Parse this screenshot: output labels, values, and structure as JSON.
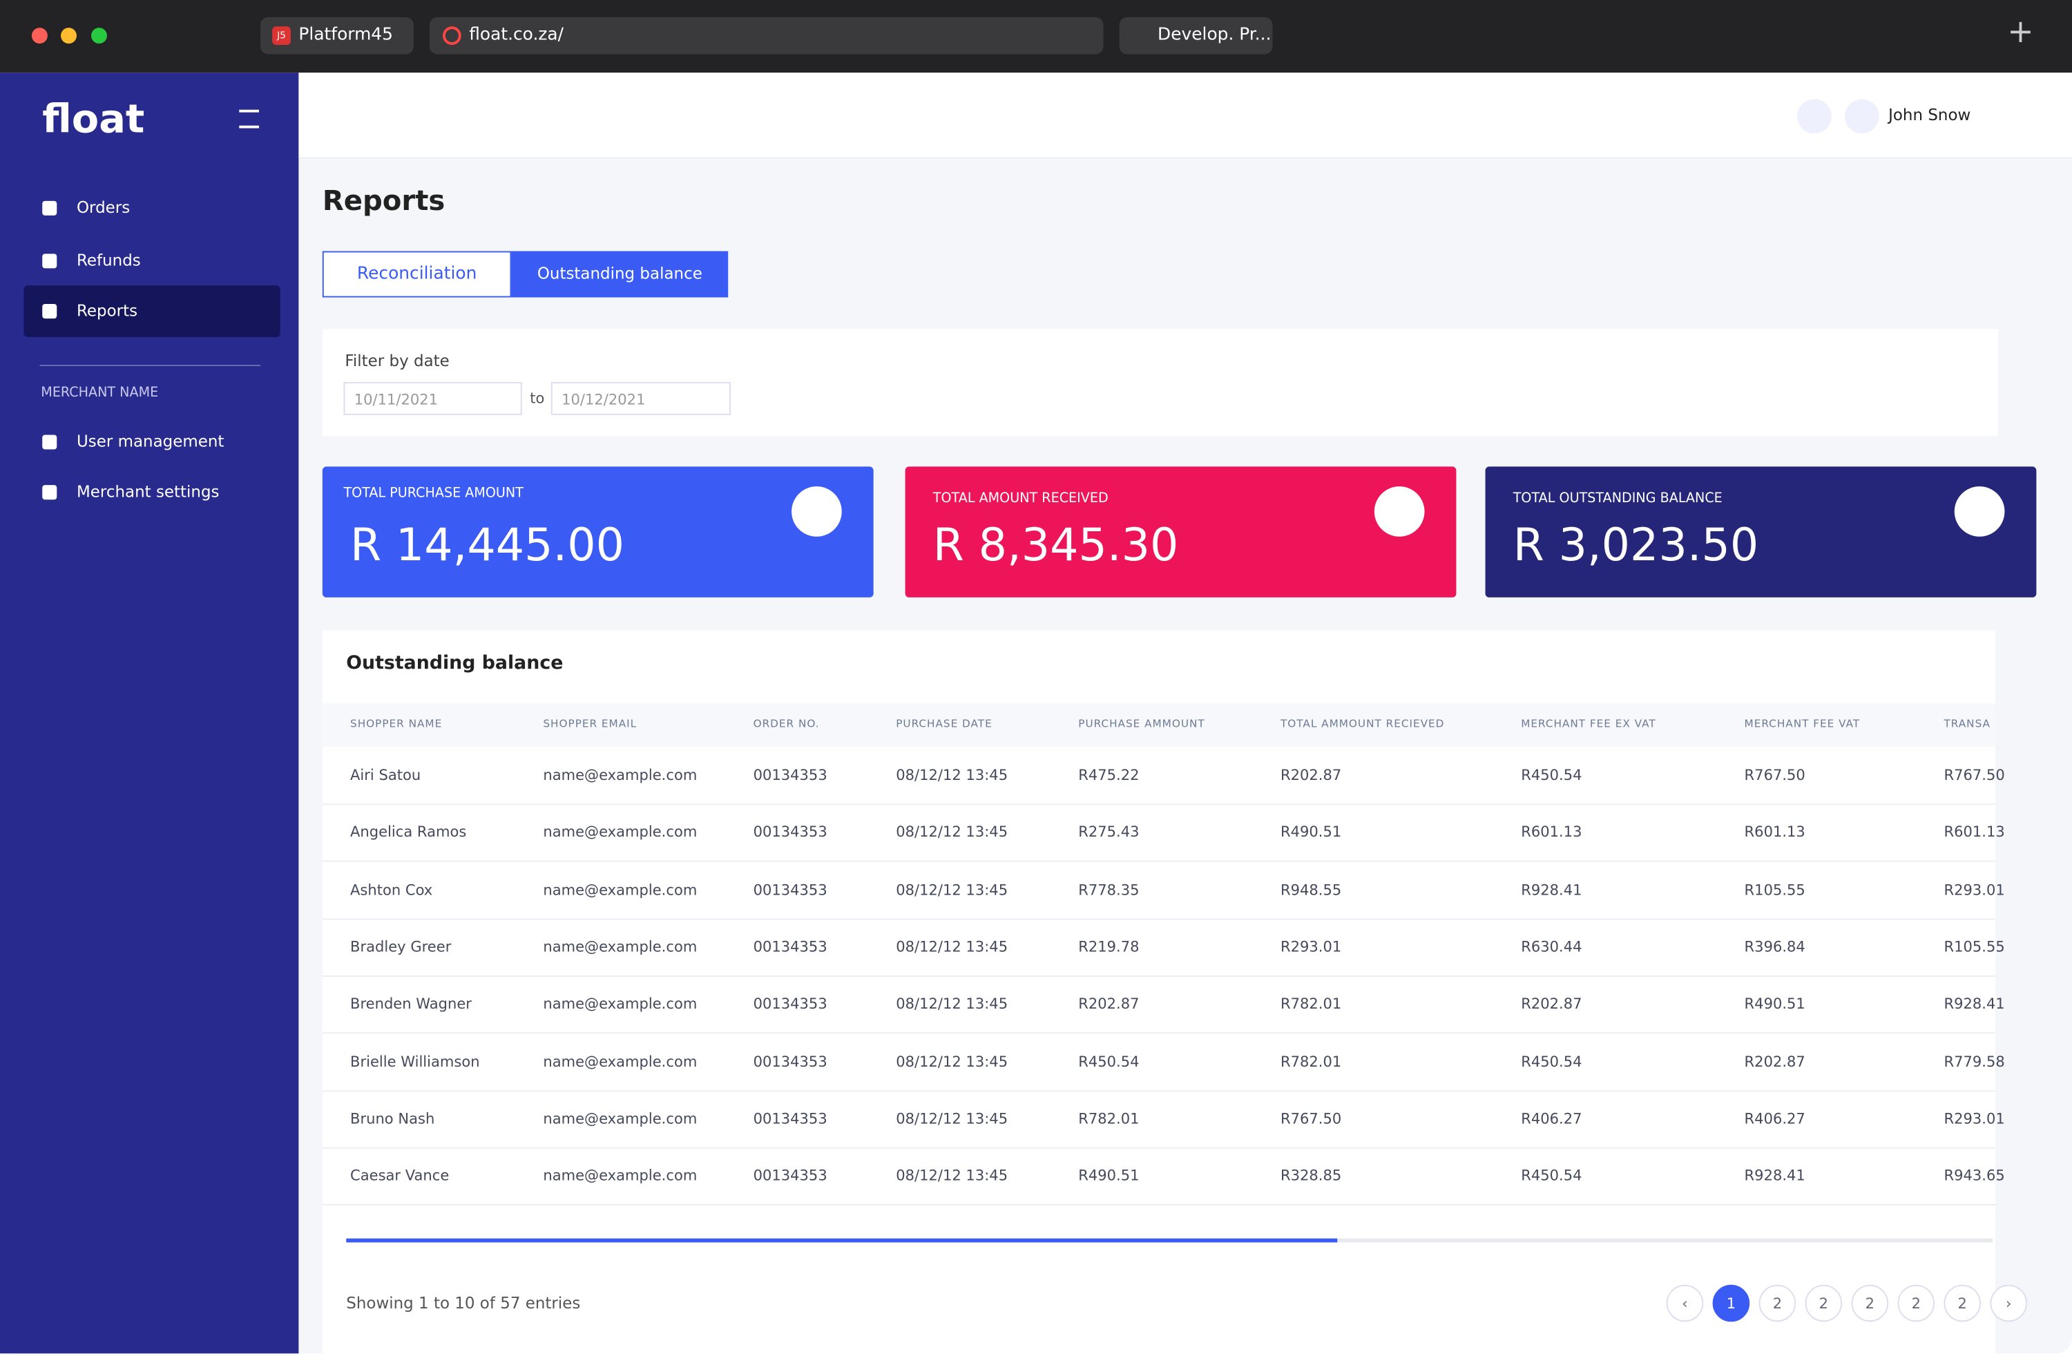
{
  "browser": {
    "tabs": [
      "Platform45",
      "float.co.za/",
      "Develop. Pr..."
    ],
    "favicon": "J5"
  },
  "sidebar": {
    "logo": "float",
    "nav": [
      "Orders",
      "Refunds",
      "Reports"
    ],
    "section": "MERCHANT NAME",
    "nav2": [
      "User management",
      "Merchant settings"
    ]
  },
  "header": {
    "user": "John Snow"
  },
  "page": {
    "title": "Reports",
    "tabs": [
      "Reconciliation",
      "Outstanding balance"
    ],
    "filter": {
      "label": "Filter by date",
      "from": "10/11/2021",
      "to_label": "to",
      "to": "10/12/2021"
    },
    "cards": [
      {
        "label": "TOTAL PURCHASE AMOUNT",
        "value": "R 14,445.00"
      },
      {
        "label": "TOTAL  AMOUNT RECEIVED",
        "value": "R 8,345.30"
      },
      {
        "label": "TOTAL OUTSTANDING BALANCE",
        "value": "R 3,023.50"
      }
    ]
  },
  "table": {
    "title": "Outstanding balance",
    "columns": [
      "SHOPPER NAME",
      "SHOPPER EMAIL",
      "ORDER NO.",
      "PURCHASE DATE",
      "PURCHASE AMMOUNT",
      "TOTAL AMMOUNT RECIEVED",
      "MERCHANT FEE EX VAT",
      "MERCHANT FEE VAT",
      "TRANSA"
    ],
    "rows": [
      [
        "Airi Satou",
        "name@example.com",
        "00134353",
        "08/12/12 13:45",
        "R475.22",
        "R202.87",
        "R450.54",
        "R767.50",
        "R767.50"
      ],
      [
        "Angelica Ramos",
        "name@example.com",
        "00134353",
        "08/12/12 13:45",
        "R275.43",
        "R490.51",
        "R601.13",
        "R601.13",
        "R601.13"
      ],
      [
        "Ashton Cox",
        "name@example.com",
        "00134353",
        "08/12/12 13:45",
        "R778.35",
        "R948.55",
        "R928.41",
        "R105.55",
        "R293.01"
      ],
      [
        "Bradley Greer",
        "name@example.com",
        "00134353",
        "08/12/12 13:45",
        "R219.78",
        "R293.01",
        "R630.44",
        "R396.84",
        "R105.55"
      ],
      [
        "Brenden Wagner",
        "name@example.com",
        "00134353",
        "08/12/12 13:45",
        "R202.87",
        "R782.01",
        "R202.87",
        "R490.51",
        "R928.41"
      ],
      [
        "Brielle Williamson",
        "name@example.com",
        "00134353",
        "08/12/12 13:45",
        "R450.54",
        "R782.01",
        "R450.54",
        "R202.87",
        "R779.58"
      ],
      [
        "Bruno Nash",
        "name@example.com",
        "00134353",
        "08/12/12 13:45",
        "R782.01",
        "R767.50",
        "R406.27",
        "R406.27",
        "R293.01"
      ],
      [
        "Caesar Vance",
        "name@example.com",
        "00134353",
        "08/12/12 13:45",
        "R490.51",
        "R328.85",
        "R450.54",
        "R928.41",
        "R943.65"
      ]
    ],
    "info": "Showing 1 to 10 of 57 entries",
    "pages": [
      "‹",
      "1",
      "2",
      "2",
      "2",
      "2",
      "2",
      "›"
    ]
  }
}
